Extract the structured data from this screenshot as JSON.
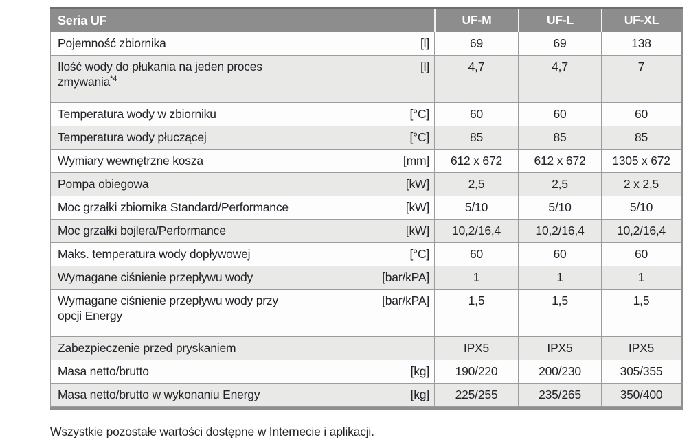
{
  "table": {
    "title": "Seria UF",
    "columns": [
      "UF-M",
      "UF-L",
      "UF-XL"
    ],
    "rows": [
      {
        "label": "Pojemność zbiornika",
        "unit": "[l]",
        "values": [
          "69",
          "69",
          "138"
        ],
        "shaded": false,
        "tall": false
      },
      {
        "label": "Ilość wody do płukania na jeden proces\nzmywania",
        "sup": "*4",
        "unit": "[l]",
        "values": [
          "4,7",
          "4,7",
          "7"
        ],
        "shaded": true,
        "tall": true
      },
      {
        "label": "Temperatura wody w zbiorniku",
        "unit": "[°C]",
        "values": [
          "60",
          "60",
          "60"
        ],
        "shaded": false,
        "tall": false
      },
      {
        "label": "Temperatura wody płuczącej",
        "unit": "[°C]",
        "values": [
          "85",
          "85",
          "85"
        ],
        "shaded": true,
        "tall": false
      },
      {
        "label": "Wymiary wewnętrzne kosza",
        "unit": "[mm]",
        "values": [
          "612 x 672",
          "612 x 672",
          "1305 x 672"
        ],
        "shaded": false,
        "tall": false
      },
      {
        "label": "Pompa obiegowa",
        "unit": "[kW]",
        "values": [
          "2,5",
          "2,5",
          "2 x 2,5"
        ],
        "shaded": true,
        "tall": false
      },
      {
        "label": "Moc grzałki zbiornika Standard/Performance",
        "unit": "[kW]",
        "values": [
          "5/10",
          "5/10",
          "5/10"
        ],
        "shaded": false,
        "tall": false
      },
      {
        "label": "Moc grzałki bojlera/Performance",
        "unit": "[kW]",
        "values": [
          "10,2/16,4",
          "10,2/16,4",
          "10,2/16,4"
        ],
        "shaded": true,
        "tall": false
      },
      {
        "label": "Maks. temperatura wody dopływowej",
        "unit": "[°C]",
        "values": [
          "60",
          "60",
          "60"
        ],
        "shaded": false,
        "tall": false
      },
      {
        "label": "Wymagane ciśnienie przepływu wody",
        "unit": "[bar/kPA]",
        "values": [
          "1",
          "1",
          "1"
        ],
        "shaded": true,
        "tall": false
      },
      {
        "label": "Wymagane ciśnienie przepływu wody przy\nopcji Energy",
        "unit": "[bar/kPA]",
        "values": [
          "1,5",
          "1,5",
          "1,5"
        ],
        "shaded": false,
        "tall": true
      },
      {
        "label": "Zabezpieczenie przed pryskaniem",
        "unit": "",
        "values": [
          "IPX5",
          "IPX5",
          "IPX5"
        ],
        "shaded": true,
        "tall": false
      },
      {
        "label": "Masa netto/brutto",
        "unit": "[kg]",
        "values": [
          "190/220",
          "200/230",
          "305/355"
        ],
        "shaded": false,
        "tall": false
      },
      {
        "label": "Masa netto/brutto w wykonaniu Energy",
        "unit": "[kg]",
        "values": [
          "225/255",
          "235/265",
          "350/400"
        ],
        "shaded": true,
        "tall": false
      }
    ]
  },
  "footnote": "Wszystkie pozostałe wartości dostępne w Internecie i aplikacji.",
  "colors": {
    "header_bg": "#8d8d8d",
    "header_text": "#ffffff",
    "row_alt_bg": "#e9e9e8",
    "grid_line": "#9c9c9c",
    "outer_rule": "#6e6e6e",
    "text": "#232227"
  }
}
